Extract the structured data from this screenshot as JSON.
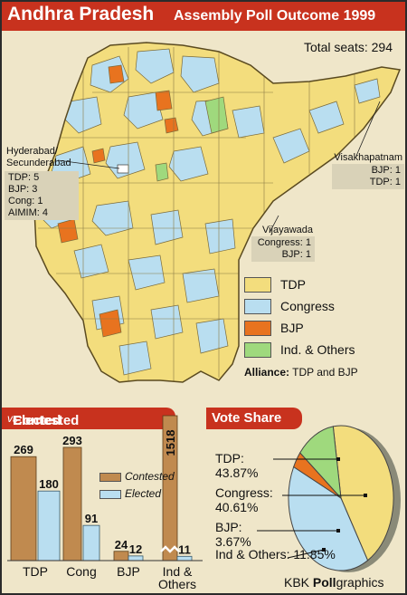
{
  "header": {
    "title": "Andhra Pradesh",
    "subtitle": "Assembly Poll Outcome 1999"
  },
  "total_seats": "Total seats: 294",
  "colors": {
    "tdp": "#f3dd7d",
    "congress": "#b9def0",
    "bjp": "#e8731f",
    "others": "#9fd97d",
    "contested": "#c08a4f",
    "red": "#c8321e"
  },
  "callouts": {
    "hyderabad": {
      "name": "Hyderabad/ Secunderabad",
      "lines": [
        "TDP: 5",
        "BJP: 3",
        "Cong: 1",
        "AIMIM: 4"
      ]
    },
    "visakhapatnam": {
      "name": "Visakhapatnam",
      "lines": [
        "BJP: 1",
        "TDP: 1"
      ]
    },
    "vijayawada": {
      "name": "Vijayawada",
      "lines": [
        "Congress: 1",
        "BJP: 1"
      ]
    }
  },
  "legend": [
    {
      "label": "TDP",
      "color_key": "tdp"
    },
    {
      "label": "Congress",
      "color_key": "congress"
    },
    {
      "label": "BJP",
      "color_key": "bjp"
    },
    {
      "label": "Ind. & Others",
      "color_key": "others"
    }
  ],
  "alliance": {
    "label": "Alliance:",
    "text": "TDP and BJP"
  },
  "contested_header": {
    "left": "Contested",
    "mid": "vs",
    "right": "Elected"
  },
  "vote_share_header": "Vote Share",
  "bar_legend": {
    "contested": "Contested",
    "elected": "Elected"
  },
  "credit": {
    "prefix": "KBK ",
    "bold": "Poll",
    "suffix": "graphics"
  },
  "chart_data": [
    {
      "type": "bar",
      "categories": [
        "TDP",
        "Cong",
        "BJP",
        "Ind & Others"
      ],
      "series": [
        {
          "name": "Contested",
          "values": [
            269,
            293,
            24,
            1518
          ]
        },
        {
          "name": "Elected",
          "values": [
            180,
            91,
            12,
            11
          ]
        }
      ],
      "value_labels": {
        "contested": [
          "269",
          "293",
          "24",
          "1518"
        ],
        "elected": [
          "180",
          "91",
          "12",
          "11"
        ]
      },
      "axis_break": true
    },
    {
      "type": "pie",
      "title": "Vote Share",
      "slices": [
        {
          "label": "TDP:",
          "pct": "43.87%",
          "value": 43.87,
          "color_key": "tdp"
        },
        {
          "label": "Congress:",
          "pct": "40.61%",
          "value": 40.61,
          "color_key": "congress"
        },
        {
          "label": "BJP:",
          "pct": "3.67%",
          "value": 3.67,
          "color_key": "bjp"
        },
        {
          "label": "Ind & Others:",
          "pct": "11.85%",
          "value": 11.85,
          "color_key": "others"
        }
      ]
    }
  ]
}
